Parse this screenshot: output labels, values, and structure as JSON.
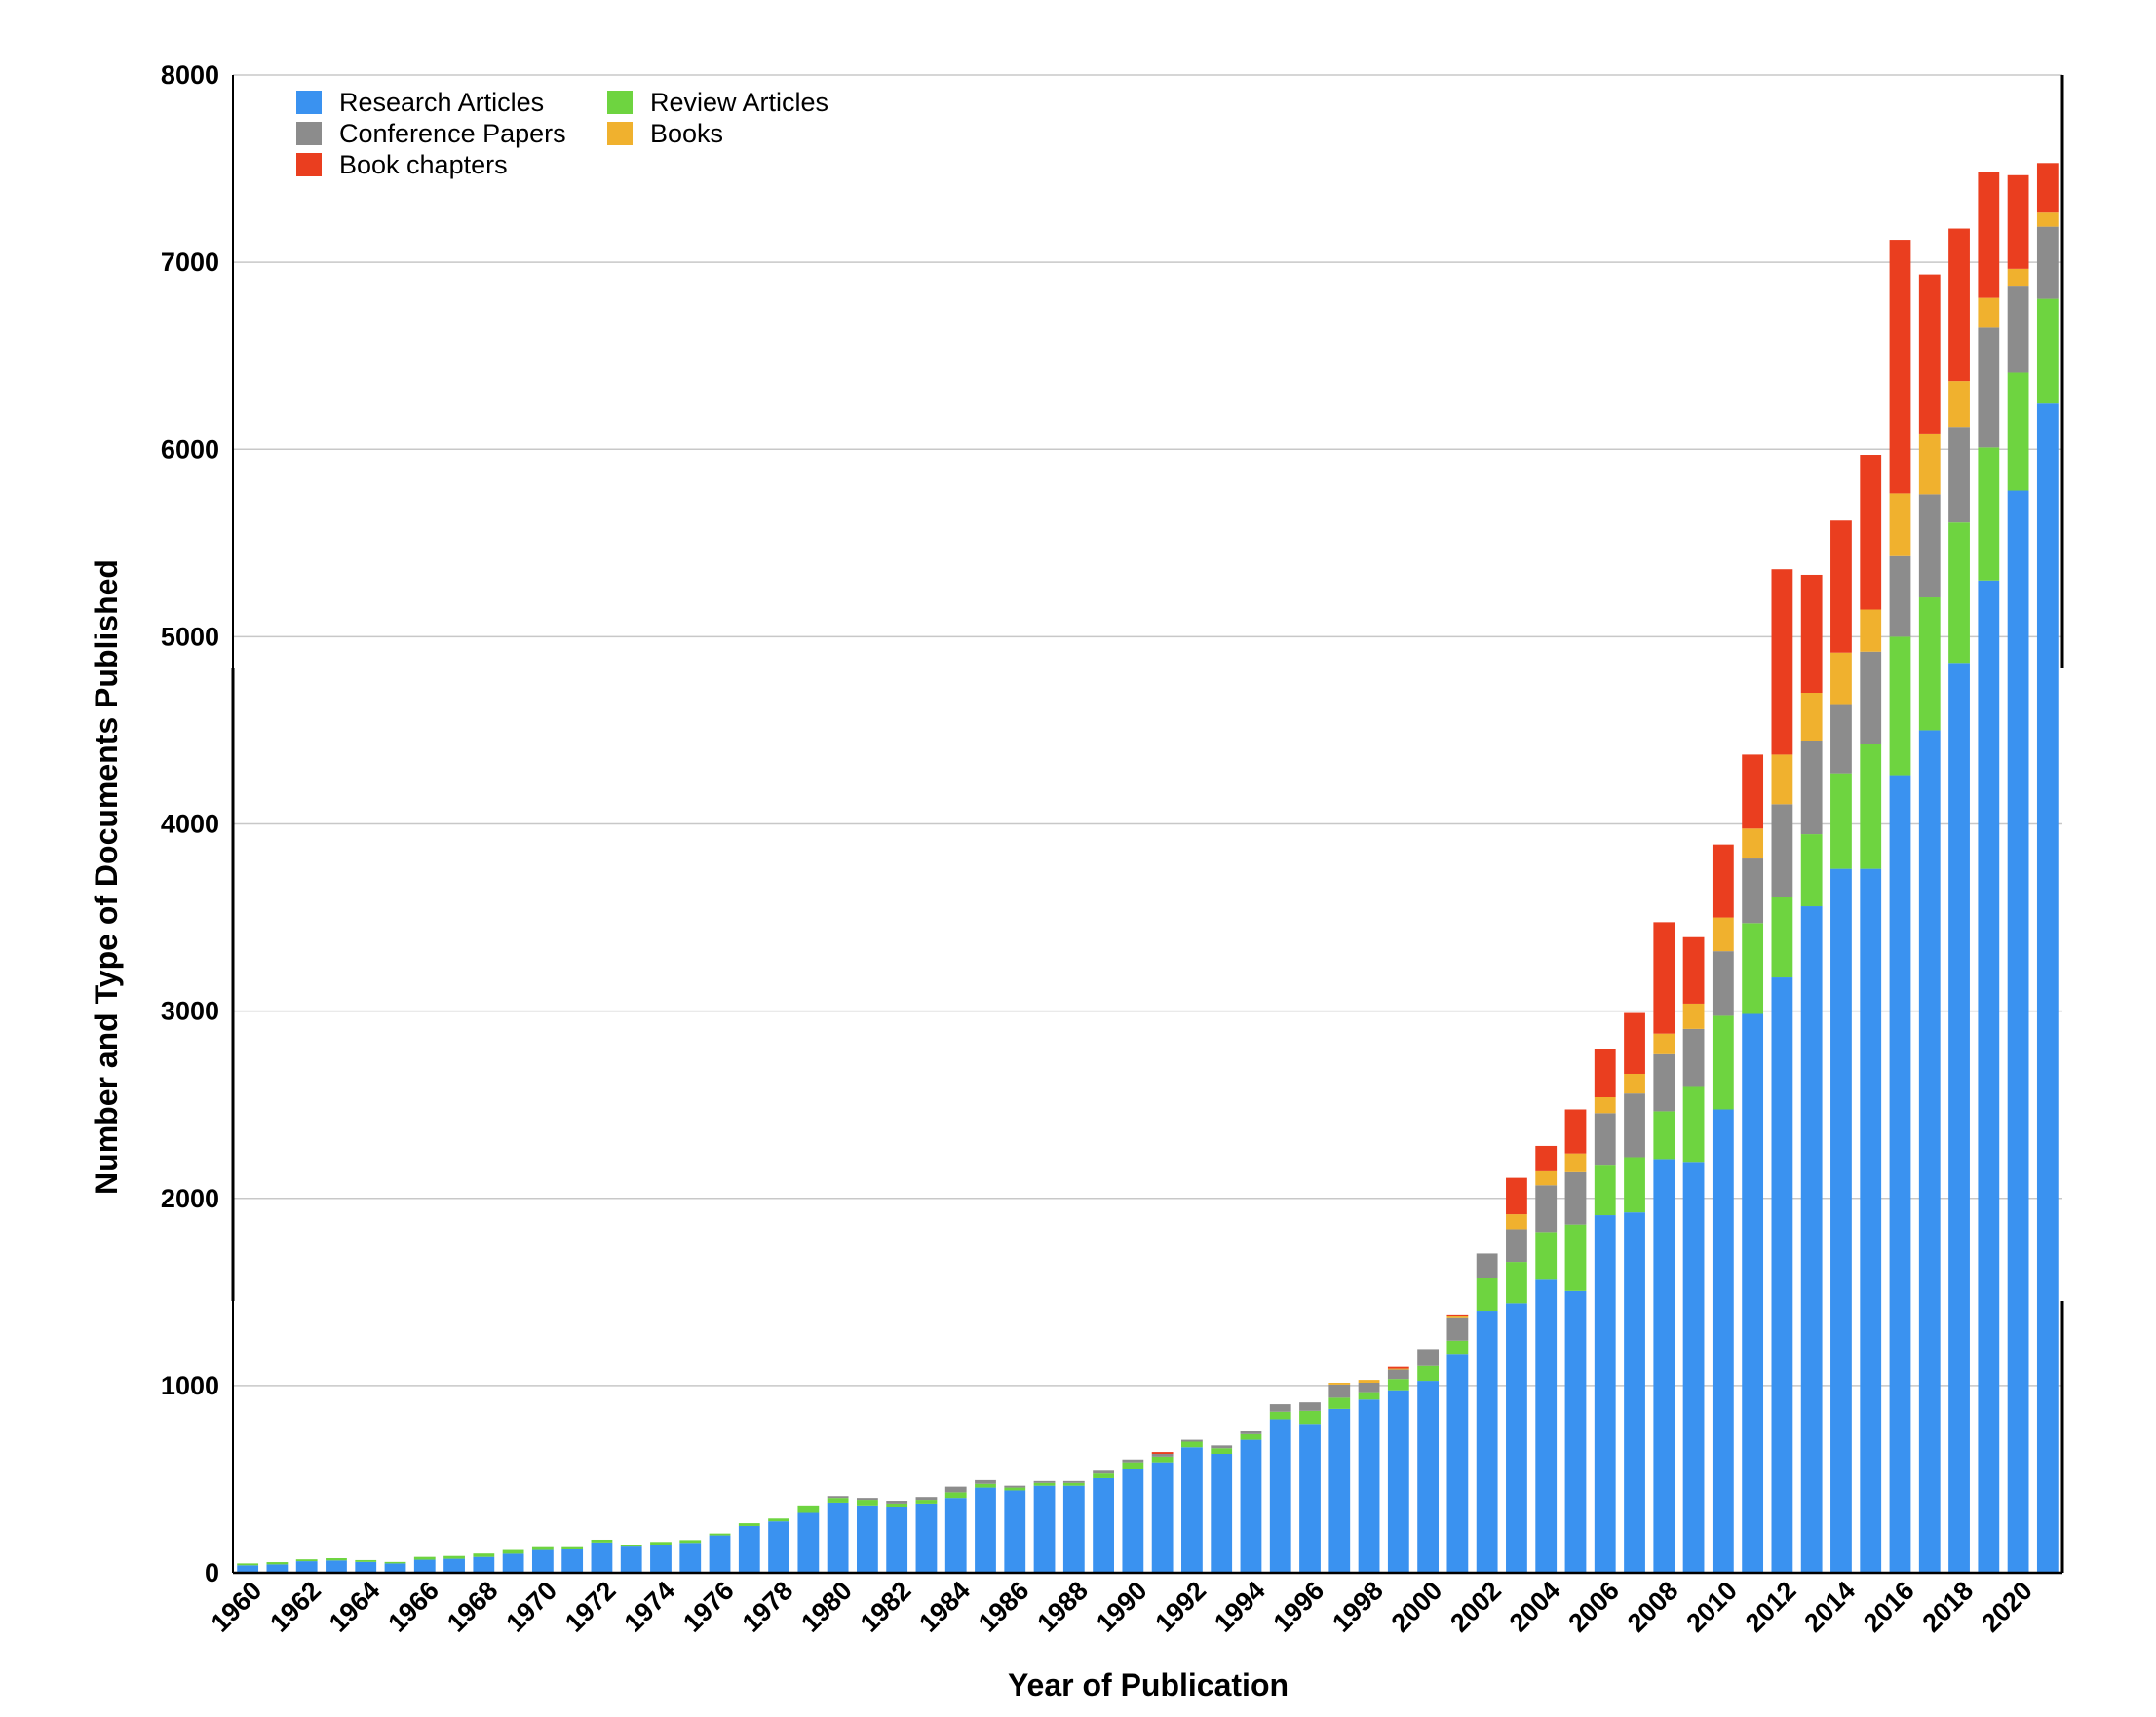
{
  "chart_data": {
    "type": "bar",
    "stacked": true,
    "title": "",
    "xlabel": "Year of Publication",
    "ylabel": "Number and Type of Documents Published",
    "ylim": [
      0,
      8000
    ],
    "yticks": [
      "0",
      "1000",
      "2000",
      "3000",
      "4000",
      "5000",
      "6000",
      "7000",
      "8000"
    ],
    "grid": true,
    "legend_position": "top-left",
    "categories": [
      "1960",
      "1961",
      "1962",
      "1963",
      "1964",
      "1965",
      "1966",
      "1967",
      "1968",
      "1969",
      "1970",
      "1971",
      "1972",
      "1973",
      "1974",
      "1975",
      "1976",
      "1977",
      "1978",
      "1979",
      "1980",
      "1981",
      "1982",
      "1983",
      "1984",
      "1985",
      "1986",
      "1987",
      "1988",
      "1989",
      "1990",
      "1991",
      "1992",
      "1993",
      "1994",
      "1995",
      "1996",
      "1997",
      "1998",
      "1999",
      "2000",
      "2001",
      "2002",
      "2003",
      "2004",
      "2005",
      "2006",
      "2007",
      "2008",
      "2009",
      "2010",
      "2011",
      "2012",
      "2013",
      "2014",
      "2015",
      "2016",
      "2017",
      "2018",
      "2019",
      "2020",
      "2021"
    ],
    "xtick_labels": [
      "1960",
      "1962",
      "1964",
      "1966",
      "1968",
      "1970",
      "1972",
      "1974",
      "1976",
      "1978",
      "1980",
      "1982",
      "1984",
      "1986",
      "1988",
      "1990",
      "1992",
      "1994",
      "1996",
      "1998",
      "2000",
      "2002",
      "2004",
      "2006",
      "2008",
      "2010",
      "2012",
      "2014",
      "2016",
      "2018",
      "2020"
    ],
    "series": [
      {
        "name": "Research Articles",
        "color": "#3a92f0",
        "values": [
          40,
          45,
          62,
          66,
          58,
          50,
          70,
          75,
          85,
          102,
          122,
          125,
          162,
          140,
          150,
          160,
          200,
          250,
          275,
          320,
          375,
          360,
          350,
          370,
          400,
          455,
          440,
          465,
          465,
          505,
          555,
          590,
          670,
          635,
          710,
          820,
          795,
          875,
          925,
          975,
          1025,
          1170,
          1400,
          1440,
          1565,
          1505,
          1910,
          1925,
          2210,
          2195,
          2475,
          2985,
          3180,
          3560,
          3760,
          3760,
          4260,
          4500,
          4860,
          5300,
          5780,
          6245
        ]
      },
      {
        "name": "Review Articles",
        "color": "#6ed440",
        "values": [
          10,
          12,
          10,
          12,
          10,
          8,
          15,
          15,
          18,
          20,
          15,
          12,
          15,
          10,
          15,
          15,
          10,
          15,
          15,
          40,
          25,
          30,
          20,
          20,
          30,
          20,
          15,
          15,
          15,
          25,
          35,
          30,
          30,
          30,
          30,
          40,
          70,
          60,
          40,
          60,
          80,
          70,
          175,
          220,
          255,
          355,
          265,
          295,
          255,
          405,
          500,
          485,
          430,
          385,
          510,
          665,
          740,
          710,
          750,
          710,
          630,
          560
        ]
      },
      {
        "name": "Conference Papers",
        "color": "#8c8c8c",
        "values": [
          0,
          0,
          0,
          0,
          0,
          0,
          0,
          0,
          0,
          0,
          0,
          0,
          0,
          0,
          0,
          0,
          0,
          0,
          0,
          0,
          10,
          10,
          15,
          15,
          30,
          20,
          10,
          10,
          10,
          15,
          15,
          15,
          10,
          15,
          15,
          40,
          45,
          70,
          50,
          50,
          90,
          120,
          130,
          175,
          250,
          280,
          280,
          340,
          305,
          305,
          345,
          345,
          495,
          500,
          370,
          495,
          430,
          550,
          510,
          640,
          460,
          385
        ]
      },
      {
        "name": "Books",
        "color": "#f0b12e",
        "values": [
          0,
          0,
          0,
          0,
          0,
          0,
          0,
          0,
          0,
          0,
          0,
          0,
          0,
          0,
          0,
          0,
          0,
          0,
          0,
          0,
          0,
          0,
          0,
          0,
          0,
          0,
          0,
          0,
          0,
          0,
          0,
          0,
          0,
          0,
          0,
          0,
          0,
          10,
          15,
          5,
          0,
          10,
          0,
          80,
          75,
          100,
          85,
          105,
          110,
          135,
          180,
          160,
          265,
          255,
          275,
          225,
          335,
          325,
          245,
          160,
          95,
          75
        ]
      },
      {
        "name": "Book chapters",
        "color": "#ea3e1f",
        "values": [
          0,
          0,
          0,
          0,
          0,
          0,
          0,
          0,
          0,
          0,
          0,
          0,
          0,
          0,
          0,
          0,
          0,
          0,
          0,
          0,
          0,
          0,
          0,
          0,
          0,
          0,
          0,
          0,
          0,
          0,
          0,
          10,
          0,
          0,
          0,
          0,
          0,
          0,
          0,
          10,
          0,
          10,
          0,
          195,
          135,
          235,
          255,
          325,
          595,
          355,
          390,
          395,
          990,
          630,
          705,
          825,
          1355,
          850,
          815,
          670,
          500,
          265
        ]
      }
    ]
  }
}
